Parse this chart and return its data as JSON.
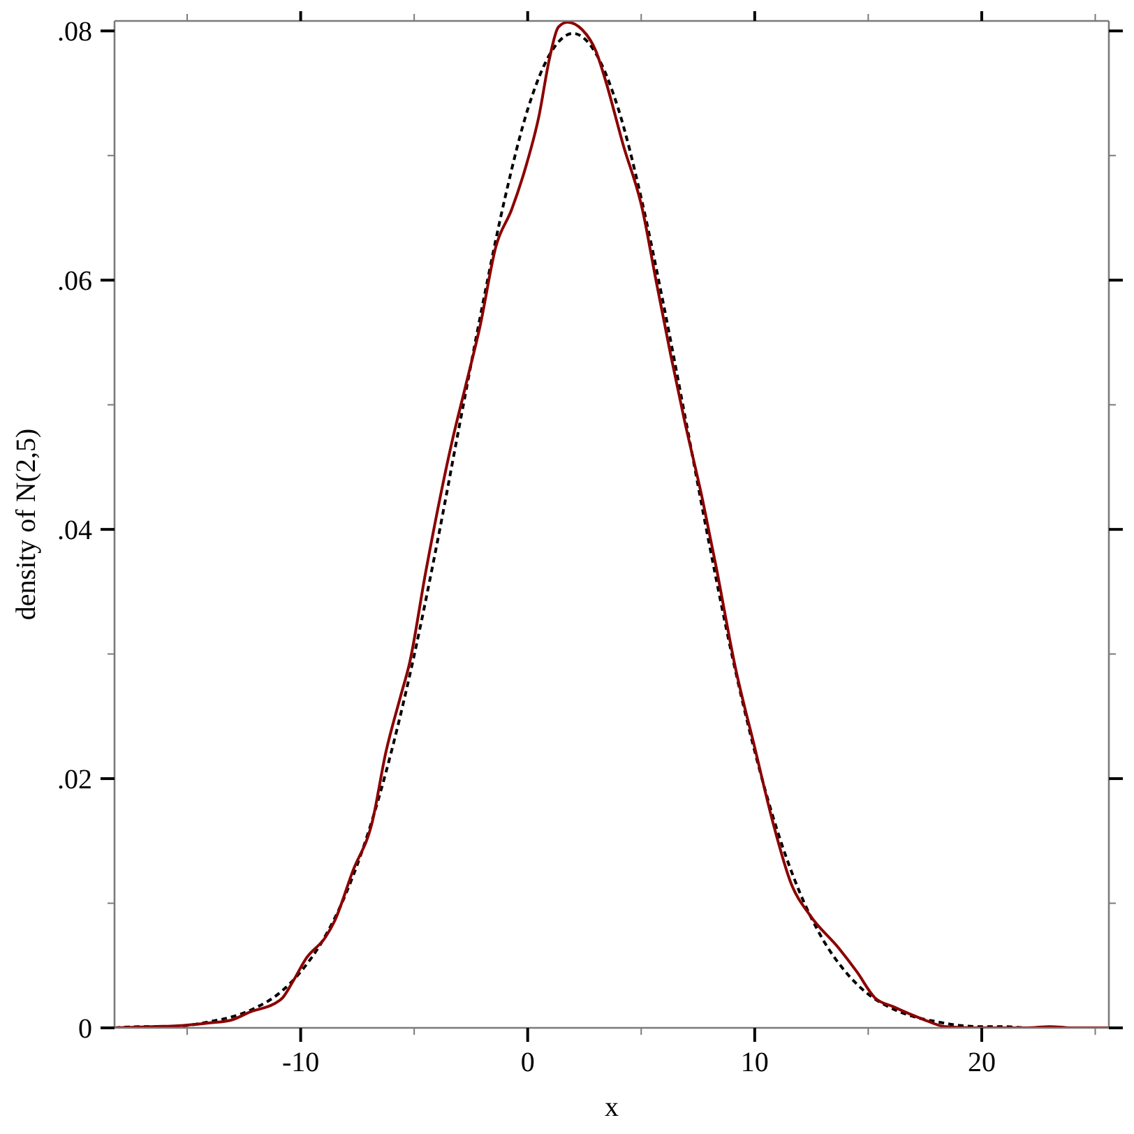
{
  "chart_data": {
    "type": "line",
    "xlabel": "x",
    "ylabel": "density of N(2,5)",
    "xlim": [
      -18.2,
      25.6
    ],
    "ylim": [
      0,
      0.0808
    ],
    "xticks": [
      {
        "value": -15,
        "label": null
      },
      -10,
      {
        "value": -5,
        "label": null
      },
      0,
      {
        "value": 5,
        "label": null
      },
      10,
      {
        "value": 15,
        "label": null
      },
      20,
      {
        "value": 25,
        "label": null
      }
    ],
    "yticks": [
      0,
      {
        "value": 0.01,
        "label": null
      },
      {
        "value": 0.02,
        "label": ".02"
      },
      {
        "value": 0.03,
        "label": null
      },
      {
        "value": 0.04,
        "label": ".04"
      },
      {
        "value": 0.05,
        "label": null
      },
      {
        "value": 0.06,
        "label": ".06"
      },
      {
        "value": 0.07,
        "label": null
      },
      {
        "value": 0.08,
        "label": ".08"
      }
    ],
    "series": [
      {
        "color": "#000000",
        "line_style": "dashed",
        "x": [
          -18.2,
          -17,
          -16,
          -15,
          -14,
          -13,
          -12,
          -11,
          -10,
          -9,
          -8,
          -7,
          -6,
          -5,
          -4,
          -3,
          -2,
          -1,
          0,
          1,
          2,
          3,
          4,
          5,
          6,
          7,
          8,
          9,
          10,
          11,
          12,
          13,
          14,
          15,
          16,
          17,
          18,
          19,
          20,
          21,
          22,
          23,
          24,
          25,
          25.6
        ],
        "values": [
          0,
          0.0001,
          0.0001,
          0.0002,
          0.0005,
          0.0009,
          0.0016,
          0.0027,
          0.0045,
          0.0071,
          0.0108,
          0.0158,
          0.0222,
          0.0299,
          0.0388,
          0.0484,
          0.0579,
          0.0666,
          0.0737,
          0.0782,
          0.0798,
          0.0782,
          0.0737,
          0.0666,
          0.0579,
          0.0484,
          0.0388,
          0.0299,
          0.0222,
          0.0158,
          0.0108,
          0.0071,
          0.0045,
          0.0027,
          0.0016,
          0.0009,
          0.0005,
          0.0002,
          0.0001,
          0.0001,
          0,
          0,
          0,
          0,
          0
        ]
      },
      {
        "color": "#8b0000",
        "line_style": "solid",
        "x": [
          -18.2,
          -16.5,
          -15.1,
          -14,
          -13.1,
          -12.2,
          -11.2,
          -10.8,
          -10.35,
          -9.75,
          -8.9,
          -8.5,
          -7.7,
          -6.85,
          -6.25,
          -5.6,
          -5.2,
          -4.5,
          -3.3,
          -2.75,
          -2.1,
          -1.4,
          -0.7,
          -0.1,
          0.5,
          0.95,
          1.35,
          1.75,
          2.4,
          3,
          3.4,
          4.2,
          5.05,
          5.65,
          6.3,
          6.9,
          7.7,
          8.3,
          9.15,
          10,
          10.8,
          11.6,
          12.45,
          13.7,
          14.5,
          15.3,
          16.1,
          17.4,
          18.4,
          19.7,
          22,
          23,
          24,
          25.6
        ],
        "values": [
          0,
          0.0001,
          0.0002,
          0.0004,
          0.0006,
          0.0013,
          0.0019,
          0.0024,
          0.0037,
          0.0056,
          0.0073,
          0.0086,
          0.0126,
          0.0165,
          0.0221,
          0.0266,
          0.0293,
          0.0365,
          0.0473,
          0.0514,
          0.0563,
          0.0627,
          0.0657,
          0.069,
          0.0732,
          0.0777,
          0.0803,
          0.0807,
          0.0801,
          0.0784,
          0.0762,
          0.0709,
          0.0657,
          0.06,
          0.054,
          0.0488,
          0.0424,
          0.037,
          0.0289,
          0.0225,
          0.0165,
          0.0116,
          0.009,
          0.0064,
          0.0045,
          0.0024,
          0.0017,
          0.0007,
          0.0001,
          0,
          0,
          0.0001,
          0,
          0
        ]
      }
    ]
  }
}
